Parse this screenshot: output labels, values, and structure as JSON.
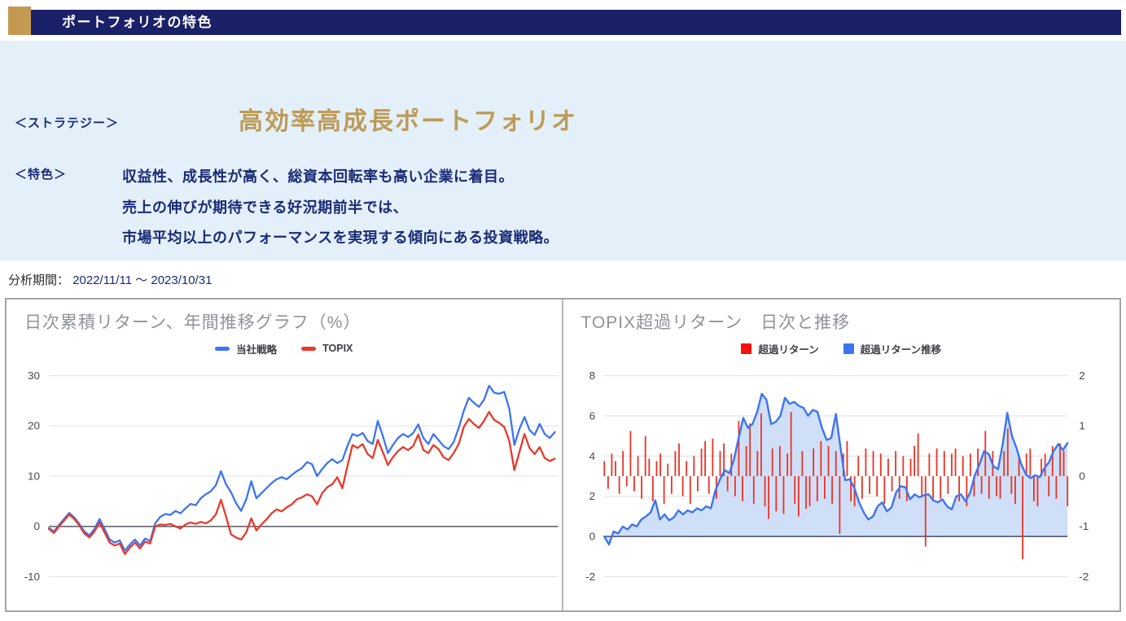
{
  "header": {
    "title": "ポートフォリオの特色"
  },
  "strategy": {
    "label": "＜ストラテジー＞",
    "name": "高効率高成長ポートフォリオ"
  },
  "features": {
    "label": "＜特色＞",
    "lines": [
      "収益性、成長性が高く、総資本回転率も高い企業に着目。",
      "売上の伸びが期待できる好況期前半では、",
      "市場平均以上のパフォーマンスを実現する傾向にある投資戦略。"
    ]
  },
  "analysis_period": {
    "label": "分析期間：",
    "value": "2022/11/11 ～ 2023/10/31"
  },
  "colors": {
    "navy_bar": "#1b2168",
    "navy_text": "#1b2a75",
    "gold_accent": "#c49a52",
    "gold_title": "#bd9b56",
    "intro_background": "#e3f0fa",
    "chart_title_gray": "#8f9398",
    "grid_gray": "#e4e4e4",
    "zero_line": "#63676d"
  },
  "chart_data": [
    {
      "type": "line",
      "title": "日次累積リターン、年間推移グラフ（%）",
      "x_range": [
        "2022/11/11",
        "2023/10/31"
      ],
      "ylim": [
        -10,
        30
      ],
      "yticks": [
        30,
        20,
        10,
        0,
        -10
      ],
      "grid": true,
      "legend_position": "top",
      "series": [
        {
          "name": "当社戦略",
          "color": "#3d74f1",
          "values": [
            -0.3,
            -1.0,
            0.3,
            1.5,
            2.7,
            1.8,
            0.5,
            -1.0,
            -1.8,
            -0.5,
            1.5,
            -0.5,
            -2.6,
            -3.2,
            -2.8,
            -4.8,
            -3.6,
            -2.6,
            -3.8,
            -2.4,
            -2.9,
            0.6,
            1.9,
            2.5,
            2.3,
            3.1,
            2.6,
            3.6,
            4.5,
            4.2,
            5.6,
            6.4,
            7.0,
            8.2,
            11.0,
            8.4,
            6.8,
            4.6,
            3.1,
            5.4,
            9.0,
            5.6,
            6.6,
            7.6,
            8.6,
            9.4,
            9.8,
            9.4,
            10.2,
            11.0,
            11.6,
            12.8,
            12.4,
            10.0,
            11.4,
            12.6,
            13.4,
            12.6,
            13.2,
            16.0,
            18.4,
            18.0,
            18.6,
            17.0,
            16.4,
            21.0,
            18.0,
            14.6,
            16.2,
            17.6,
            18.4,
            17.8,
            18.6,
            20.3,
            17.6,
            16.4,
            18.4,
            17.2,
            16.0,
            15.4,
            16.8,
            19.6,
            23.0,
            25.6,
            24.6,
            23.8,
            25.2,
            28.0,
            26.6,
            26.4,
            26.8,
            23.4,
            16.2,
            19.4,
            21.8,
            19.2,
            18.2,
            20.4,
            18.4,
            17.6,
            18.8
          ]
        },
        {
          "name": "TOPIX",
          "color": "#e8392b",
          "values": [
            -0.5,
            -1.3,
            0.0,
            1.2,
            2.4,
            1.5,
            0.2,
            -1.4,
            -2.2,
            -1.0,
            0.8,
            -1.2,
            -3.2,
            -3.8,
            -3.4,
            -5.5,
            -4.2,
            -3.2,
            -4.4,
            -3.0,
            -3.4,
            0.0,
            0.4,
            0.3,
            0.5,
            0.0,
            -0.4,
            0.4,
            0.8,
            0.5,
            0.9,
            0.6,
            1.2,
            2.4,
            5.3,
            2.0,
            -1.6,
            -2.2,
            -2.6,
            -1.2,
            1.6,
            -0.8,
            0.4,
            1.4,
            2.6,
            3.4,
            3.0,
            3.8,
            4.4,
            5.4,
            5.8,
            6.4,
            6.0,
            4.4,
            6.6,
            7.8,
            8.4,
            9.8,
            7.6,
            12.0,
            16.2,
            15.6,
            16.4,
            14.4,
            13.6,
            17.2,
            14.8,
            12.2,
            13.8,
            15.0,
            15.8,
            15.2,
            16.0,
            18.3,
            15.2,
            14.6,
            16.2,
            15.4,
            13.8,
            13.2,
            14.6,
            16.4,
            19.8,
            21.4,
            20.4,
            19.6,
            21.0,
            22.8,
            21.2,
            20.6,
            19.8,
            17.0,
            11.2,
            14.8,
            18.4,
            15.6,
            14.4,
            15.8,
            13.6,
            13.0,
            13.5
          ]
        }
      ]
    },
    {
      "type": "bar",
      "title": "TOPIX超過リターン　日次と推移",
      "x_range": [
        "2022/11/11",
        "2023/10/31"
      ],
      "left_ylim": [
        -2,
        8
      ],
      "left_yticks": [
        8,
        6,
        4,
        2,
        0,
        -2
      ],
      "right_ylim": [
        -2,
        2
      ],
      "right_yticks": [
        2,
        1,
        0,
        -1,
        -2
      ],
      "grid": true,
      "legend_position": "top",
      "series": [
        {
          "name": "超過リターン",
          "type": "bar",
          "axis": "right",
          "color": "#e93425",
          "legend_color": "#f50f0f",
          "values": [
            0.3,
            -0.25,
            0.45,
            0.3,
            -0.35,
            0.5,
            -0.2,
            0.9,
            -0.3,
            0.4,
            -0.45,
            0.8,
            0.35,
            -0.5,
            0.3,
            0.45,
            -0.55,
            0.25,
            -0.35,
            0.5,
            0.65,
            -0.4,
            0.3,
            -0.55,
            0.4,
            -0.3,
            0.55,
            0.7,
            -0.35,
            0.75,
            -0.45,
            0.5,
            0.65,
            -0.3,
            0.45,
            -0.4,
            1.1,
            -0.5,
            0.6,
            1.05,
            -0.55,
            0.5,
            1.25,
            -0.6,
            -0.85,
            0.55,
            -0.7,
            0.6,
            -0.75,
            0.45,
            1.28,
            -0.55,
            -0.8,
            0.5,
            -0.65,
            -0.6,
            0.55,
            -0.5,
            0.7,
            -0.45,
            0.6,
            -0.55,
            0.5,
            -1.15,
            0.45,
            0.7,
            -0.5,
            -0.6,
            0.4,
            -0.45,
            0.55,
            -0.35,
            0.5,
            -0.4,
            0.45,
            -0.55,
            0.35,
            -0.3,
            0.5,
            -0.45,
            0.4,
            -0.5,
            0.35,
            0.6,
            0.85,
            -0.4,
            -1.4,
            0.45,
            -0.5,
            0.55,
            -0.45,
            0.5,
            -0.35,
            0.45,
            0.55,
            -0.5,
            0.4,
            -0.6,
            0.45,
            -0.4,
            0.55,
            -0.35,
            0.9,
            -0.45,
            0.5,
            -0.4,
            -0.45,
            0.5,
            0.95,
            -0.35,
            -0.55,
            0.4,
            -1.65,
            0.45,
            0.55,
            -0.5,
            -0.6,
            0.35,
            0.45,
            -0.4,
            0.6,
            -0.45,
            0.65,
            0.5,
            -0.6
          ]
        },
        {
          "name": "超過リターン推移",
          "type": "area",
          "axis": "left",
          "color": "#3d74f1",
          "fill": "#cbdcf7",
          "values": [
            0.0,
            -0.4,
            0.25,
            0.15,
            0.5,
            0.35,
            0.6,
            0.5,
            0.85,
            1.0,
            1.2,
            1.8,
            0.85,
            1.1,
            0.8,
            0.95,
            1.3,
            1.1,
            1.3,
            1.2,
            1.4,
            1.3,
            1.5,
            1.4,
            2.3,
            2.85,
            3.3,
            3.15,
            3.85,
            4.9,
            5.9,
            5.4,
            5.6,
            6.2,
            7.1,
            6.8,
            5.6,
            5.7,
            6.0,
            6.9,
            6.6,
            6.7,
            6.5,
            6.4,
            6.0,
            6.3,
            6.2,
            5.4,
            4.8,
            4.9,
            6.1,
            4.4,
            2.8,
            2.85,
            2.4,
            1.7,
            1.2,
            0.85,
            1.0,
            1.5,
            1.7,
            1.25,
            1.45,
            2.2,
            2.5,
            2.45,
            1.85,
            2.1,
            1.95,
            2.05,
            2.1,
            1.8,
            1.7,
            1.85,
            1.5,
            1.35,
            2.0,
            2.1,
            1.75,
            2.2,
            3.05,
            3.6,
            4.25,
            4.1,
            3.5,
            3.35,
            4.6,
            6.15,
            5.0,
            4.4,
            3.6,
            3.1,
            2.9,
            3.05,
            2.95,
            3.4,
            3.7,
            4.25,
            4.6,
            4.3,
            4.65
          ]
        }
      ]
    }
  ]
}
